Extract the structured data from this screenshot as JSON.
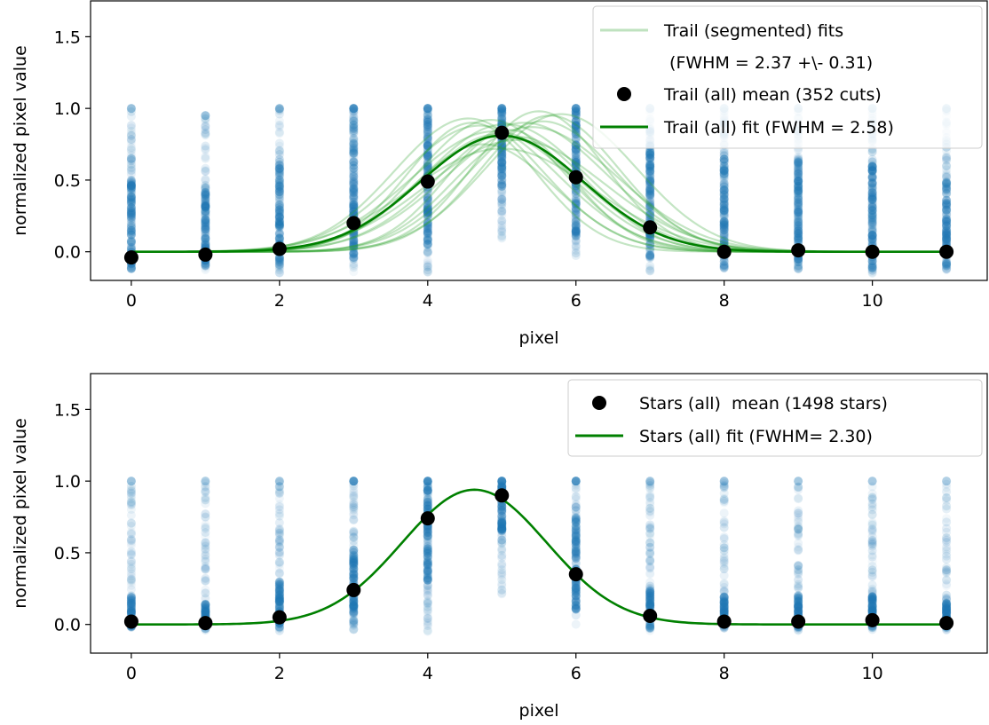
{
  "chart_data": [
    {
      "type": "scatter",
      "xlabel": "pixel",
      "ylabel": "normalized pixel value",
      "xlim": [
        -0.55,
        11.55
      ],
      "ylim": [
        -0.2,
        1.75
      ],
      "xticks": [
        0,
        2,
        4,
        6,
        8,
        10
      ],
      "yticks": [
        0.0,
        0.5,
        1.0,
        1.5
      ],
      "xtick_labels": [
        "0",
        "2",
        "4",
        "6",
        "8",
        "10"
      ],
      "ytick_labels": [
        "0.0",
        "0.5",
        "1.0",
        "1.5"
      ],
      "grid": false,
      "legend_placement": "top-right",
      "legend": [
        {
          "label": "Trail (segmented) fits",
          "label2": " (FWHM = 2.37 +\\- 0.31)",
          "kind": "line-light"
        },
        {
          "label": "Trail (all) mean (352 cuts)",
          "kind": "marker"
        },
        {
          "label": "Trail (all) fit (FWHM = 2.58)",
          "kind": "line"
        }
      ],
      "raw_columns": {
        "x": [
          0,
          1,
          2,
          3,
          4,
          5,
          6,
          7,
          8,
          9,
          10,
          11
        ],
        "range_max": [
          1.0,
          0.95,
          1.0,
          1.0,
          1.0,
          1.0,
          1.0,
          1.0,
          1.0,
          1.0,
          1.0,
          1.0
        ],
        "range_min": [
          -0.15,
          -0.15,
          -0.15,
          -0.15,
          -0.15,
          0.08,
          -0.1,
          -0.15,
          -0.15,
          -0.15,
          -0.15,
          -0.15
        ],
        "dense_lo": [
          -0.12,
          -0.1,
          -0.1,
          -0.05,
          0.05,
          0.45,
          0.1,
          -0.05,
          -0.12,
          -0.12,
          -0.12,
          -0.12
        ],
        "dense_hi": [
          0.5,
          0.45,
          0.6,
          0.95,
          1.0,
          1.0,
          1.0,
          0.85,
          0.7,
          0.65,
          0.65,
          0.5
        ]
      },
      "mean": {
        "name": "Trail (all) mean (352 cuts)",
        "x": [
          0,
          1,
          2,
          3,
          4,
          5,
          6,
          7,
          8,
          9,
          10,
          11
        ],
        "y": [
          -0.04,
          -0.02,
          0.02,
          0.2,
          0.49,
          0.83,
          0.52,
          0.17,
          0.0,
          0.01,
          0.0,
          0.0
        ]
      },
      "fit": {
        "name": "Trail (all) fit (FWHM = 2.58)",
        "amplitude": 0.81,
        "center": 5.0,
        "fwhm": 2.58
      },
      "segmented_fits": [
        {
          "amplitude": 0.93,
          "center": 4.55,
          "fwhm": 2.35
        },
        {
          "amplitude": 0.88,
          "center": 4.7,
          "fwhm": 2.5
        },
        {
          "amplitude": 0.98,
          "center": 5.5,
          "fwhm": 2.1
        },
        {
          "amplitude": 0.9,
          "center": 5.3,
          "fwhm": 2.6
        },
        {
          "amplitude": 0.85,
          "center": 5.1,
          "fwhm": 2.0
        },
        {
          "amplitude": 0.92,
          "center": 4.85,
          "fwhm": 2.3
        },
        {
          "amplitude": 0.78,
          "center": 5.2,
          "fwhm": 2.8
        },
        {
          "amplitude": 0.95,
          "center": 5.65,
          "fwhm": 2.2
        },
        {
          "amplitude": 0.82,
          "center": 4.95,
          "fwhm": 2.45
        },
        {
          "amplitude": 0.87,
          "center": 5.4,
          "fwhm": 2.7
        },
        {
          "amplitude": 0.72,
          "center": 5.0,
          "fwhm": 2.9
        },
        {
          "amplitude": 0.9,
          "center": 4.6,
          "fwhm": 2.05
        },
        {
          "amplitude": 0.96,
          "center": 5.8,
          "fwhm": 2.4
        },
        {
          "amplitude": 0.8,
          "center": 5.25,
          "fwhm": 2.15
        },
        {
          "amplitude": 0.89,
          "center": 5.05,
          "fwhm": 2.55
        },
        {
          "amplitude": 0.75,
          "center": 4.75,
          "fwhm": 2.25
        },
        {
          "amplitude": 0.91,
          "center": 5.55,
          "fwhm": 2.35
        },
        {
          "amplitude": 0.84,
          "center": 4.9,
          "fwhm": 2.65
        }
      ]
    },
    {
      "type": "scatter",
      "xlabel": "pixel",
      "ylabel": "normalized pixel value",
      "xlim": [
        -0.55,
        11.55
      ],
      "ylim": [
        -0.2,
        1.75
      ],
      "xticks": [
        0,
        2,
        4,
        6,
        8,
        10
      ],
      "yticks": [
        0.0,
        0.5,
        1.0,
        1.5
      ],
      "xtick_labels": [
        "0",
        "2",
        "4",
        "6",
        "8",
        "10"
      ],
      "ytick_labels": [
        "0.0",
        "0.5",
        "1.0",
        "1.5"
      ],
      "grid": false,
      "legend_placement": "top-right",
      "legend": [
        {
          "label": "Stars (all)  mean (1498 stars)",
          "kind": "marker"
        },
        {
          "label": "Stars (all) fit (FWHM= 2.30)",
          "kind": "line"
        }
      ],
      "raw_columns": {
        "x": [
          0,
          1,
          2,
          3,
          4,
          5,
          6,
          7,
          8,
          9,
          10,
          11
        ],
        "range_max": [
          1.0,
          1.0,
          1.0,
          1.0,
          1.0,
          1.0,
          1.0,
          1.0,
          1.0,
          1.0,
          1.0,
          1.0
        ],
        "range_min": [
          -0.05,
          -0.05,
          -0.05,
          -0.05,
          -0.05,
          0.2,
          -0.05,
          -0.05,
          -0.05,
          -0.05,
          -0.05,
          -0.05
        ],
        "dense_lo": [
          -0.03,
          -0.03,
          -0.03,
          0.0,
          0.3,
          0.65,
          0.1,
          -0.03,
          -0.03,
          -0.03,
          -0.03,
          -0.03
        ],
        "dense_hi": [
          0.2,
          0.15,
          0.3,
          0.55,
          1.0,
          1.0,
          0.75,
          0.25,
          0.2,
          0.2,
          0.2,
          0.15
        ]
      },
      "mean": {
        "name": "Stars (all)  mean (1498 stars)",
        "x": [
          0,
          1,
          2,
          3,
          4,
          5,
          6,
          7,
          8,
          9,
          10,
          11
        ],
        "y": [
          0.02,
          0.01,
          0.05,
          0.24,
          0.74,
          0.9,
          0.35,
          0.06,
          0.02,
          0.02,
          0.03,
          0.01
        ]
      },
      "fit": {
        "name": "Stars (all) fit (FWHM= 2.30)",
        "amplitude": 0.94,
        "center": 4.63,
        "fwhm": 2.3
      }
    }
  ],
  "colors": {
    "scatter": "#1f77b4",
    "fit_line": "#008000",
    "segmented_line": "#2ca02c",
    "mean_marker": "#000000"
  }
}
